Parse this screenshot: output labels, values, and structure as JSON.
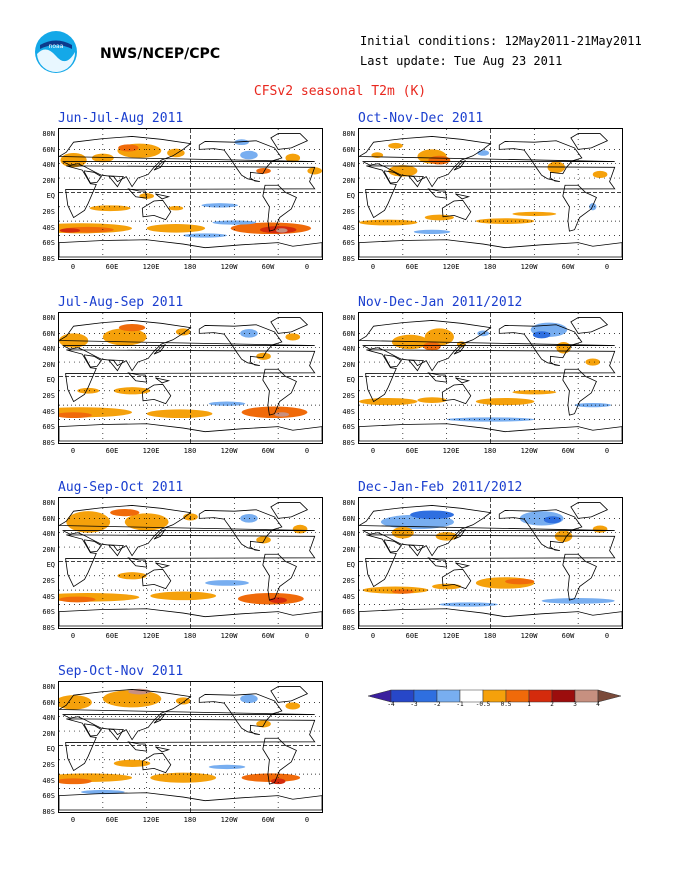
{
  "header": {
    "agency": "NWS/NCEP/CPC",
    "initial_conditions": "Initial conditions: 12May2011-21May2011",
    "last_update": "Last update: Tue Aug 23 2011",
    "product_title": "CFSv2 seasonal T2m (K)"
  },
  "axes": {
    "lat_labels": [
      "80N",
      "60N",
      "40N",
      "20N",
      "EQ",
      "20S",
      "40S",
      "60S",
      "80S"
    ],
    "lon_labels": [
      "0",
      "60E",
      "120E",
      "180",
      "120W",
      "60W",
      "0"
    ]
  },
  "panels": [
    {
      "id": "jja",
      "title": "Jun-Jul-Aug 2011",
      "season": "Jun-Jul-Aug 2011"
    },
    {
      "id": "ond",
      "title": "Oct-Nov-Dec 2011",
      "season": "Oct-Nov-Dec 2011"
    },
    {
      "id": "jas",
      "title": "Jul-Aug-Sep 2011",
      "season": "Jul-Aug-Sep 2011"
    },
    {
      "id": "ndj",
      "title": "Nov-Dec-Jan 2011/2012",
      "season": "Nov-Dec-Jan 2011/2012"
    },
    {
      "id": "aso",
      "title": "Aug-Sep-Oct 2011",
      "season": "Aug-Sep-Oct 2011"
    },
    {
      "id": "djf",
      "title": "Dec-Jan-Feb 2011/2012",
      "season": "Dec-Jan-Feb 2011/2012"
    },
    {
      "id": "son",
      "title": "Sep-Oct-Nov 2011",
      "season": "Sep-Oct-Nov 2011"
    }
  ],
  "colorbar": {
    "labels": [
      "-4",
      "-3",
      "-2",
      "-1",
      "-0.5",
      "0.5",
      "1",
      "2",
      "3",
      "4"
    ],
    "colors": [
      "#3a1f9e",
      "#2747c8",
      "#2f6fe0",
      "#78aef0",
      "#ffffff",
      "#f5a10b",
      "#f06a0a",
      "#d42b0c",
      "#9c0d0d",
      "#c79080",
      "#7a4a3a"
    ]
  }
}
